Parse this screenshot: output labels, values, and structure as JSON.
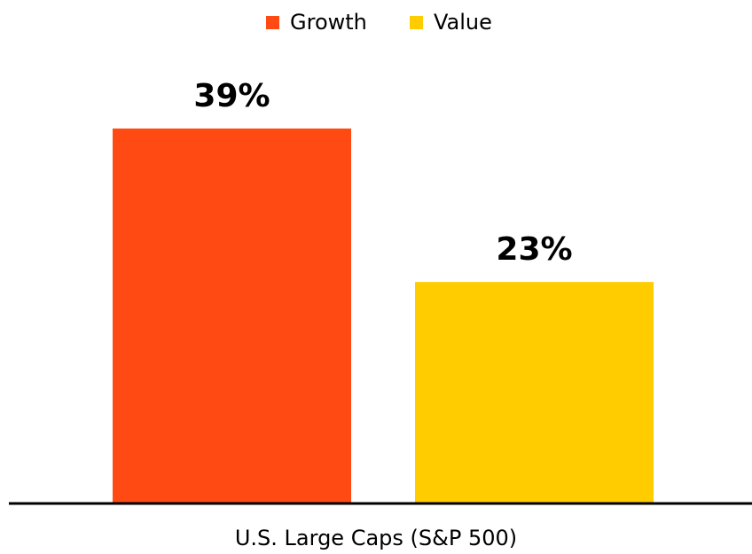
{
  "chart_data": {
    "type": "bar",
    "categories": [
      "U.S. Large Caps (S&P 500)"
    ],
    "series": [
      {
        "name": "Growth",
        "color": "#FF4B13",
        "values": [
          39
        ],
        "value_labels": [
          "39%"
        ]
      },
      {
        "name": "Value",
        "color": "#FFCC00",
        "values": [
          23
        ],
        "value_labels": [
          "23%"
        ]
      }
    ]
  }
}
